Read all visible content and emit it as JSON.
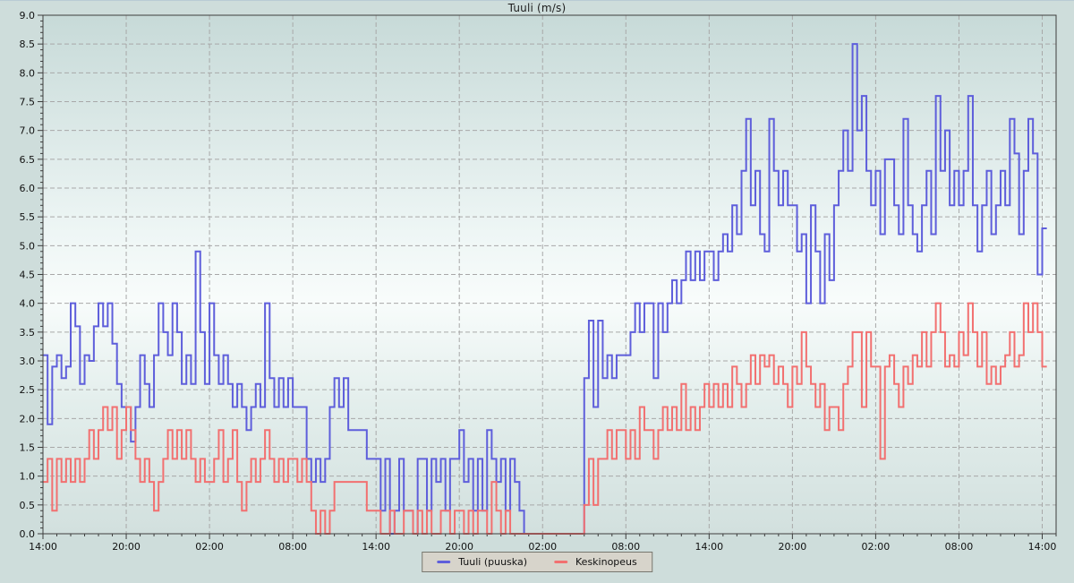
{
  "colors": {
    "page_bg": "#cedddb",
    "plot_gradient_top": "#c7dad8",
    "plot_gradient_middle": "#f8fcfb",
    "plot_gradient_bottom": "#d2e0de",
    "grid": "#a8a8a8",
    "axis": "#3d3d3d",
    "text": "#111111",
    "legend_bg": "#d7d4cb",
    "legend_border": "#77776f",
    "gust_line": "#5e5edb",
    "average_line": "#f27070"
  },
  "legend": {
    "items": [
      {
        "label": "Tuuli (puuska)",
        "color": "#5e5edb"
      },
      {
        "label": "Keskinopeus",
        "color": "#f27070"
      }
    ]
  },
  "chart_data": {
    "type": "line",
    "line_style": "step-after",
    "title": "Tuuli (m/s)",
    "xlabel": "",
    "ylabel": "",
    "ylim": [
      0,
      9
    ],
    "y_tick_step": 0.5,
    "y_minor_tick_step": 0.1,
    "x_total_hours": 73,
    "x_tick_interval_hours": 6,
    "x_minor_tick_interval_hours": 1,
    "x_tick_labels": [
      "14:00",
      "20:00",
      "02:00",
      "08:00",
      "14:00",
      "20:00",
      "02:00",
      "08:00",
      "14:00",
      "20:00",
      "02:00",
      "08:00",
      "14:00"
    ],
    "sample_interval_minutes": 20,
    "grid": "dashed",
    "legend_position": "bottom-center",
    "series": [
      {
        "name": "Tuuli (puuska)",
        "color": "#5e5edb",
        "values": [
          3.1,
          1.9,
          2.9,
          3.1,
          2.7,
          2.9,
          4.0,
          3.6,
          2.6,
          3.1,
          3.0,
          3.6,
          4.0,
          3.6,
          4.0,
          3.3,
          2.6,
          2.2,
          2.2,
          1.6,
          2.2,
          3.1,
          2.6,
          2.2,
          3.1,
          4.0,
          3.5,
          3.1,
          4.0,
          3.5,
          2.6,
          3.1,
          2.6,
          4.9,
          3.5,
          2.6,
          4.0,
          3.1,
          2.6,
          3.1,
          2.6,
          2.2,
          2.6,
          2.2,
          1.8,
          2.2,
          2.6,
          2.2,
          4.0,
          2.7,
          2.2,
          2.7,
          2.2,
          2.7,
          2.2,
          2.2,
          2.2,
          1.3,
          0.9,
          1.3,
          0.9,
          1.3,
          2.2,
          2.7,
          2.2,
          2.7,
          1.8,
          1.8,
          1.8,
          1.8,
          1.3,
          1.3,
          1.3,
          0.4,
          1.3,
          0.0,
          0.4,
          1.3,
          0.4,
          0.4,
          0.0,
          1.3,
          1.3,
          0.4,
          1.3,
          0.9,
          1.3,
          0.4,
          1.3,
          1.3,
          1.8,
          0.9,
          1.3,
          0.4,
          1.3,
          0.4,
          1.8,
          1.3,
          0.9,
          1.3,
          0.4,
          1.3,
          0.9,
          0.4,
          0.0,
          0.0,
          0.0,
          0.0,
          0.0,
          0.0,
          0.0,
          0.0,
          0.0,
          0.0,
          0.0,
          0.0,
          0.0,
          2.7,
          3.7,
          2.2,
          3.7,
          2.7,
          3.1,
          2.7,
          3.1,
          3.1,
          3.1,
          3.5,
          4.0,
          3.5,
          4.0,
          4.0,
          2.7,
          4.0,
          3.5,
          4.0,
          4.4,
          4.0,
          4.4,
          4.9,
          4.4,
          4.9,
          4.4,
          4.9,
          4.9,
          4.4,
          4.9,
          5.2,
          4.9,
          5.7,
          5.2,
          6.3,
          7.2,
          5.7,
          6.3,
          5.2,
          4.9,
          7.2,
          6.3,
          5.7,
          6.3,
          5.7,
          5.7,
          4.9,
          5.2,
          4.0,
          5.7,
          4.9,
          4.0,
          5.2,
          4.4,
          5.7,
          6.3,
          7.0,
          6.3,
          8.5,
          7.0,
          7.6,
          6.3,
          5.7,
          6.3,
          5.2,
          6.5,
          6.5,
          5.7,
          5.2,
          7.2,
          5.7,
          5.2,
          4.9,
          5.7,
          6.3,
          5.2,
          7.6,
          6.3,
          7.0,
          5.7,
          6.3,
          5.7,
          6.3,
          7.6,
          5.7,
          4.9,
          5.7,
          6.3,
          5.2,
          5.7,
          6.3,
          5.7,
          7.2,
          6.6,
          5.2,
          6.3,
          7.2,
          6.6,
          4.5,
          5.3
        ]
      },
      {
        "name": "Keskinopeus",
        "color": "#f27070",
        "values": [
          0.9,
          1.3,
          0.4,
          1.3,
          0.9,
          1.3,
          0.9,
          1.3,
          0.9,
          1.3,
          1.8,
          1.3,
          1.8,
          2.2,
          1.8,
          2.2,
          1.3,
          1.8,
          2.2,
          1.8,
          1.3,
          0.9,
          1.3,
          0.9,
          0.4,
          0.9,
          1.3,
          1.8,
          1.3,
          1.8,
          1.3,
          1.8,
          1.3,
          0.9,
          1.3,
          0.9,
          0.9,
          1.3,
          1.8,
          0.9,
          1.3,
          1.8,
          0.9,
          0.4,
          0.9,
          1.3,
          0.9,
          1.3,
          1.8,
          1.3,
          0.9,
          1.3,
          0.9,
          1.3,
          1.3,
          0.9,
          1.3,
          0.9,
          0.4,
          0.0,
          0.4,
          0.0,
          0.4,
          0.9,
          0.9,
          0.9,
          0.9,
          0.9,
          0.9,
          0.9,
          0.4,
          0.4,
          0.4,
          0.0,
          0.0,
          0.4,
          0.0,
          0.0,
          0.4,
          0.4,
          0.0,
          0.4,
          0.0,
          0.4,
          0.0,
          0.0,
          0.4,
          0.4,
          0.0,
          0.4,
          0.4,
          0.0,
          0.4,
          0.0,
          0.4,
          0.4,
          0.0,
          0.9,
          0.4,
          0.0,
          0.4,
          0.0,
          0.0,
          0.0,
          0.0,
          0.0,
          0.0,
          0.0,
          0.0,
          0.0,
          0.0,
          0.0,
          0.0,
          0.0,
          0.0,
          0.0,
          0.0,
          0.5,
          1.3,
          0.5,
          1.3,
          1.3,
          1.8,
          1.3,
          1.8,
          1.8,
          1.3,
          1.8,
          1.3,
          2.2,
          1.8,
          1.8,
          1.3,
          1.8,
          2.2,
          1.8,
          2.2,
          1.8,
          2.6,
          1.8,
          2.2,
          1.8,
          2.2,
          2.6,
          2.2,
          2.6,
          2.2,
          2.6,
          2.2,
          2.9,
          2.6,
          2.2,
          2.6,
          3.1,
          2.6,
          3.1,
          2.9,
          3.1,
          2.6,
          2.9,
          2.6,
          2.2,
          2.9,
          2.6,
          3.5,
          2.9,
          2.6,
          2.2,
          2.6,
          1.8,
          2.2,
          2.2,
          1.8,
          2.6,
          2.9,
          3.5,
          3.5,
          2.2,
          3.5,
          2.9,
          2.9,
          1.3,
          2.9,
          3.1,
          2.6,
          2.2,
          2.9,
          2.6,
          3.1,
          2.9,
          3.5,
          2.9,
          3.5,
          4.0,
          3.5,
          2.9,
          3.1,
          2.9,
          3.5,
          3.1,
          4.0,
          3.5,
          2.9,
          3.5,
          2.6,
          2.9,
          2.6,
          2.9,
          3.1,
          3.5,
          2.9,
          3.1,
          4.0,
          3.5,
          4.0,
          3.5,
          2.9
        ]
      }
    ]
  }
}
